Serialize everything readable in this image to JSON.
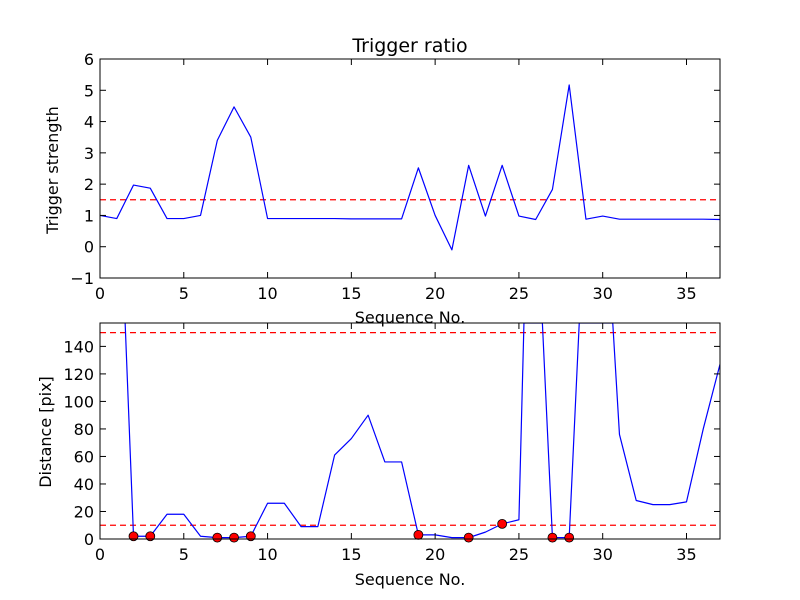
{
  "chart_data": [
    {
      "type": "line",
      "title": "Trigger ratio",
      "xlabel": "Sequence No.",
      "ylabel": "Trigger strength",
      "xlim": [
        0,
        37
      ],
      "ylim": [
        -1,
        6
      ],
      "xticks": [
        "0",
        "5",
        "10",
        "15",
        "20",
        "25",
        "30",
        "35"
      ],
      "yticks": [
        "−1",
        "0",
        "1",
        "2",
        "3",
        "4",
        "5",
        "6"
      ],
      "grid": false,
      "series": [
        {
          "color": "#0000ff",
          "style": "solid",
          "x": [
            0,
            1,
            2,
            3,
            4,
            5,
            6,
            7,
            8,
            9,
            10,
            11,
            12,
            13,
            14,
            15,
            16,
            17,
            18,
            19,
            20,
            21,
            22,
            23,
            24,
            25,
            26,
            27,
            28,
            29,
            30,
            31,
            32,
            33,
            34,
            35,
            36,
            37
          ],
          "values": [
            1.0,
            0.9,
            1.97,
            1.87,
            0.9,
            0.9,
            1.0,
            3.4,
            4.47,
            3.5,
            0.9,
            0.9,
            0.9,
            0.9,
            0.9,
            0.89,
            0.89,
            0.89,
            0.89,
            2.52,
            1.0,
            -0.1,
            2.6,
            0.98,
            2.6,
            0.98,
            0.87,
            1.83,
            5.17,
            0.88,
            0.98,
            0.88,
            0.88,
            0.88,
            0.88,
            0.88,
            0.88,
            0.87
          ]
        }
      ],
      "thresholds": [
        {
          "y": 1.5,
          "color": "#ff0000",
          "style": "dashed"
        }
      ]
    },
    {
      "type": "line",
      "title": "",
      "xlabel": "Sequence No.",
      "ylabel": "Distance [pix]",
      "xlim": [
        0,
        37
      ],
      "ylim": [
        0,
        157
      ],
      "xticks": [
        "0",
        "5",
        "10",
        "15",
        "20",
        "25",
        "30",
        "35"
      ],
      "yticks": [
        "0",
        "20",
        "40",
        "60",
        "80",
        "100",
        "120",
        "140"
      ],
      "grid": false,
      "series": [
        {
          "color": "#0000ff",
          "style": "solid",
          "x": [
            1.5,
            2,
            3,
            4,
            5,
            6,
            7,
            8,
            9,
            10,
            11,
            12,
            13,
            14,
            15,
            16,
            17,
            18,
            19,
            20,
            21,
            22,
            23,
            24,
            25,
            25.3,
            26,
            26.4,
            27,
            28,
            28.6,
            30,
            30.6,
            31,
            32,
            33,
            34,
            35,
            36,
            37
          ],
          "values": [
            157,
            2,
            2,
            18,
            18,
            2,
            1,
            1,
            2,
            26,
            26,
            9,
            9,
            61,
            73,
            90,
            56,
            56,
            3,
            3,
            1,
            1,
            5,
            11,
            14,
            157,
            157,
            157,
            1,
            1,
            157,
            157,
            157,
            76,
            28,
            25,
            25,
            27,
            80,
            127
          ]
        },
        {
          "color": "#ff0000",
          "style": "markers",
          "x": [
            2,
            3,
            7,
            8,
            9,
            19,
            22,
            24,
            27,
            28
          ],
          "values": [
            2,
            2,
            1,
            1,
            2,
            3,
            1,
            11,
            1,
            1
          ]
        }
      ],
      "thresholds": [
        {
          "y": 150,
          "color": "#ff0000",
          "style": "dashed"
        },
        {
          "y": 10,
          "color": "#ff0000",
          "style": "dashed"
        }
      ]
    }
  ]
}
